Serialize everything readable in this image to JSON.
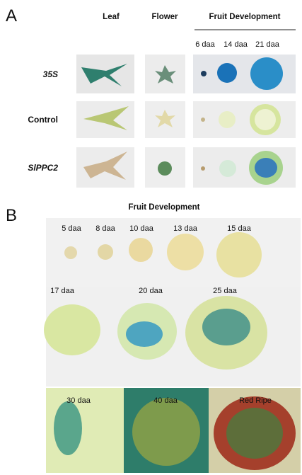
{
  "panel_a": {
    "label": "A",
    "columns": [
      "Leaf",
      "Flower",
      "Fruit Development"
    ],
    "stages": [
      "6 daa",
      "14 daa",
      "21 daa"
    ],
    "rows": [
      "35S",
      "Control",
      "SlPPC2"
    ]
  },
  "panel_b": {
    "label": "B",
    "title": "Fruit Development",
    "rows": [
      [
        "5 daa",
        "8 daa",
        "10 daa",
        "13 daa",
        "15 daa"
      ],
      [
        "17 daa",
        "20 daa",
        "25 daa"
      ],
      [
        "30 daa",
        "40 daa",
        "Red Ripe"
      ]
    ]
  }
}
